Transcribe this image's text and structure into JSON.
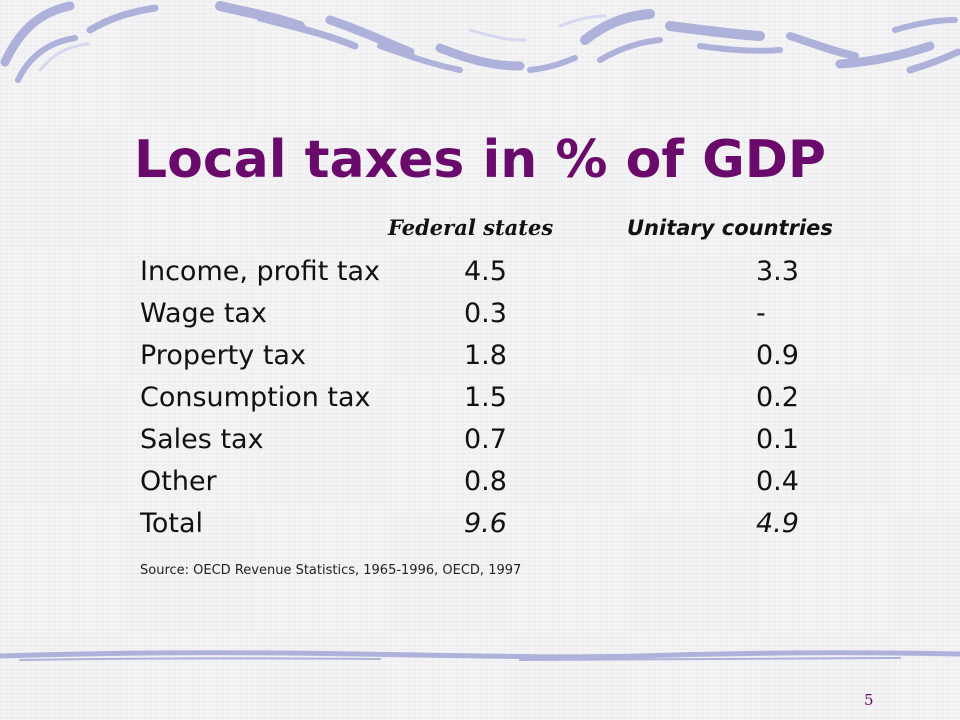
{
  "slide": {
    "title": "Local taxes in % of GDP",
    "columns": {
      "federal": "Federal states",
      "unitary": "Unitary countries"
    },
    "rows": [
      {
        "label": "Income, profit tax",
        "federal": "4.5",
        "unitary": "3.3"
      },
      {
        "label": "Wage tax",
        "federal": "0.3",
        "unitary": "-"
      },
      {
        "label": "Property tax",
        "federal": "1.8",
        "unitary": "0.9"
      },
      {
        "label": "Consumption tax",
        "federal": "1.5",
        "unitary": "0.2"
      },
      {
        "label": "Sales tax",
        "federal": "0.7",
        "unitary": "0.1"
      },
      {
        "label": "Other",
        "federal": "0.8",
        "unitary": "0.4"
      },
      {
        "label": "Total",
        "federal": "9.6",
        "unitary": "4.9"
      }
    ],
    "source": "Source: OECD Revenue Statistics, 1965-1996, OECD, 1997",
    "page_number": "5"
  },
  "colors": {
    "title": "#6a0a6a",
    "decoration": "#a9acd6"
  }
}
